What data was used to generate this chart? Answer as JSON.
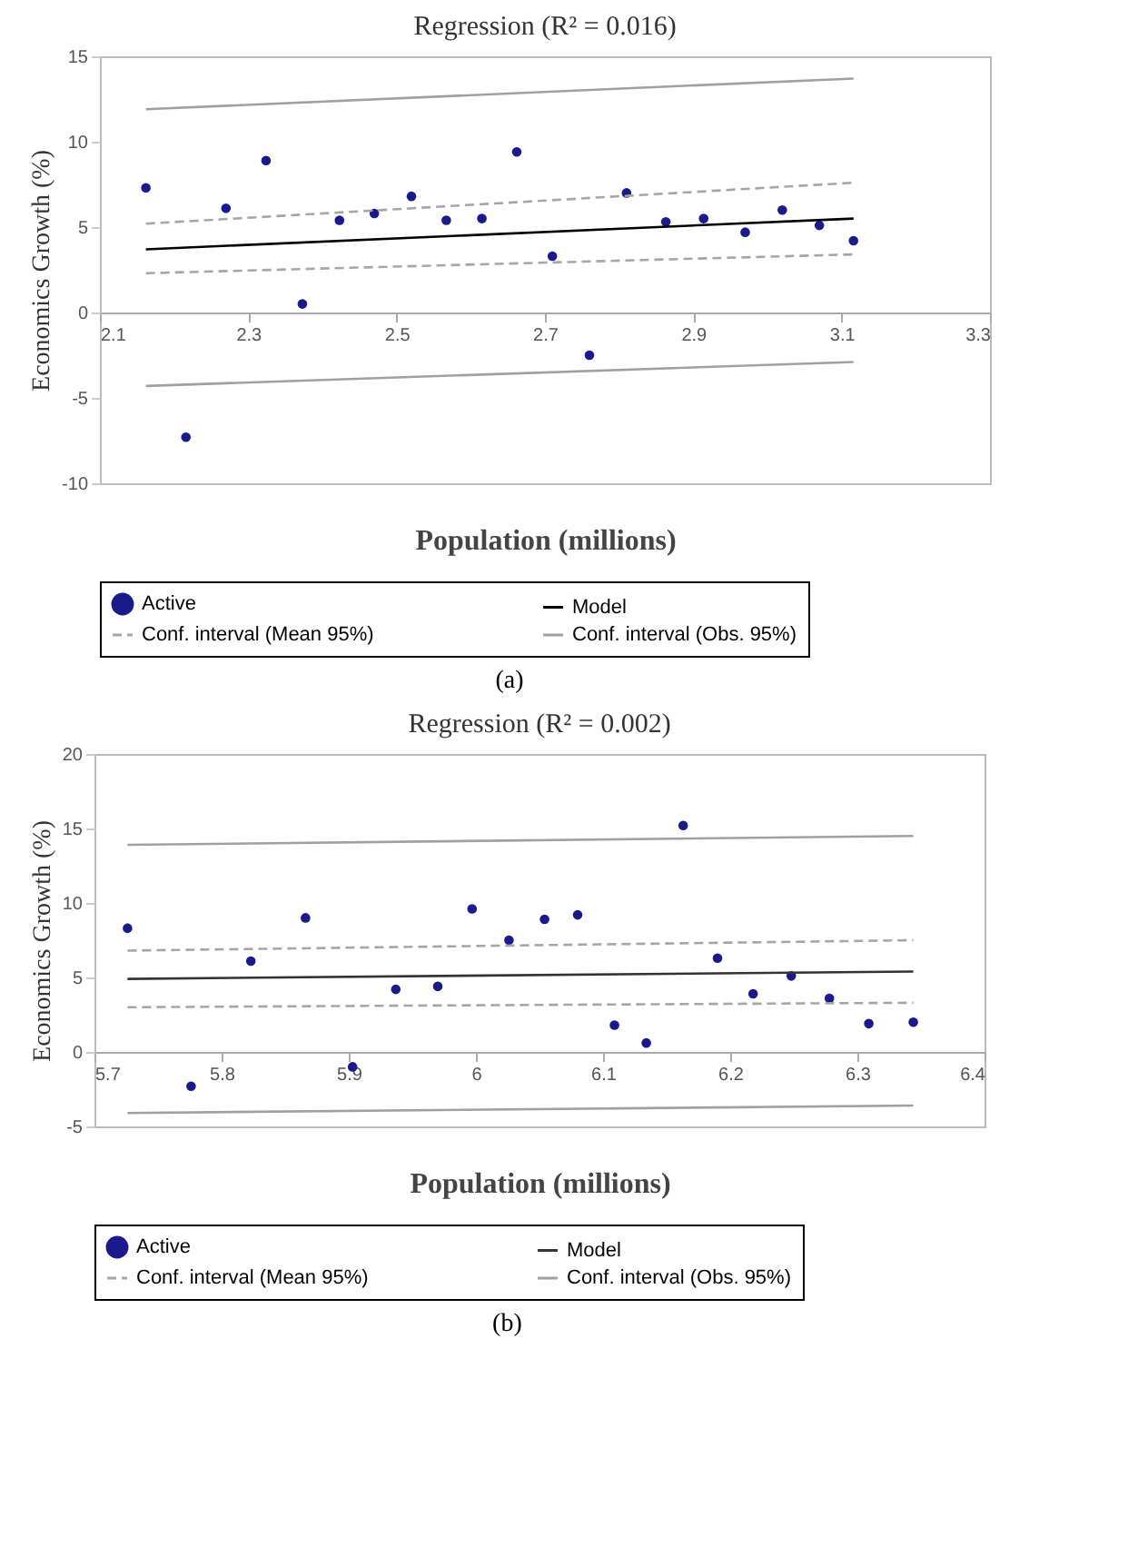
{
  "chart_data": [
    {
      "type": "scatter",
      "title": "Regression  (R² = 0.016)",
      "xlabel": "Population (millions)",
      "ylabel": "Economics Growth (%)",
      "xlim": [
        2.1,
        3.3
      ],
      "ylim": [
        -10,
        15
      ],
      "xticks": [
        2.1,
        2.3,
        2.5,
        2.7,
        2.9,
        3.1,
        3.3
      ],
      "yticks": [
        -10,
        -5,
        0,
        5,
        10,
        15
      ],
      "legend": "bottom",
      "annotations": [
        "(a)"
      ],
      "series": [
        {
          "name": "Active",
          "marker": "circle",
          "color": "#1a1a8c",
          "x": [
            2.162,
            2.216,
            2.27,
            2.324,
            2.373,
            2.423,
            2.47,
            2.52,
            2.567,
            2.615,
            2.662,
            2.71,
            2.76,
            2.81,
            2.863,
            2.914,
            2.97,
            3.02,
            3.07,
            3.116
          ],
          "values": [
            7.3,
            -7.3,
            6.1,
            8.9,
            0.5,
            5.4,
            5.8,
            6.8,
            5.4,
            5.5,
            9.4,
            3.3,
            -2.5,
            7.0,
            5.3,
            5.5,
            4.7,
            6.0,
            5.1,
            4.2
          ]
        },
        {
          "name": "Model",
          "type": "line",
          "line_style": "solid",
          "color": "#000000",
          "x": [
            2.162,
            3.116
          ],
          "values": [
            3.7,
            5.5
          ]
        },
        {
          "name": "Conf. interval (Mean 95%)",
          "type": "line",
          "line_style": "dashed",
          "color": "#a6a6a6",
          "x": [
            2.162,
            3.116
          ],
          "values": [
            5.2,
            7.6
          ]
        },
        {
          "type": "line",
          "line_style": "dashed",
          "color": "#a6a6a6",
          "x": [
            2.162,
            3.116
          ],
          "values": [
            2.3,
            3.4
          ]
        },
        {
          "name": "Conf. interval (Obs. 95%)",
          "type": "line",
          "line_style": "solid",
          "color": "#a0a0a0",
          "x": [
            2.162,
            3.116
          ],
          "values": [
            11.9,
            13.7
          ]
        },
        {
          "type": "line",
          "line_style": "solid",
          "color": "#a0a0a0",
          "x": [
            2.162,
            3.116
          ],
          "values": [
            -4.3,
            -2.9
          ]
        }
      ]
    },
    {
      "type": "scatter",
      "title": "Regression (R² = 0.002)",
      "xlabel": "Population (millions)",
      "ylabel": "Economics Growth (%)",
      "xlim": [
        5.7,
        6.4
      ],
      "ylim": [
        -5,
        20
      ],
      "xticks": [
        5.7,
        5.8,
        5.9,
        6,
        6.1,
        6.2,
        6.3,
        6.4
      ],
      "yticks": [
        -5,
        0,
        5,
        10,
        15,
        20
      ],
      "legend": "bottom",
      "annotations": [
        "(b)"
      ],
      "series": [
        {
          "name": "Active",
          "marker": "circle",
          "color": "#1a1a8c",
          "x": [
            5.726,
            5.776,
            5.823,
            5.866,
            5.903,
            5.937,
            5.97,
            5.997,
            6.026,
            6.054,
            6.08,
            6.109,
            6.134,
            6.163,
            6.19,
            6.218,
            6.248,
            6.278,
            6.309,
            6.344
          ],
          "values": [
            8.3,
            -2.3,
            6.1,
            9.0,
            -1.0,
            4.2,
            4.4,
            9.6,
            7.5,
            8.9,
            9.2,
            1.8,
            0.6,
            15.2,
            6.3,
            3.9,
            5.1,
            3.6,
            1.9,
            2.0
          ]
        },
        {
          "name": "Model",
          "type": "line",
          "line_style": "solid",
          "color": "#333333",
          "x": [
            5.726,
            6.344
          ],
          "values": [
            4.9,
            5.4
          ]
        },
        {
          "name": "Conf. interval (Mean 95%)",
          "type": "line",
          "line_style": "dashed",
          "color": "#a6a6a6",
          "x": [
            5.726,
            6.344
          ],
          "values": [
            6.8,
            7.5
          ]
        },
        {
          "type": "line",
          "line_style": "dashed",
          "color": "#a6a6a6",
          "x": [
            5.726,
            6.344
          ],
          "values": [
            3.0,
            3.3
          ]
        },
        {
          "name": "Conf. interval (Obs. 95%)",
          "type": "line",
          "line_style": "solid",
          "color": "#a0a0a0",
          "x": [
            5.726,
            6.344
          ],
          "values": [
            13.9,
            14.5
          ]
        },
        {
          "type": "line",
          "line_style": "solid",
          "color": "#a0a0a0",
          "x": [
            5.726,
            6.344
          ],
          "values": [
            -4.1,
            -3.6
          ]
        }
      ]
    }
  ]
}
